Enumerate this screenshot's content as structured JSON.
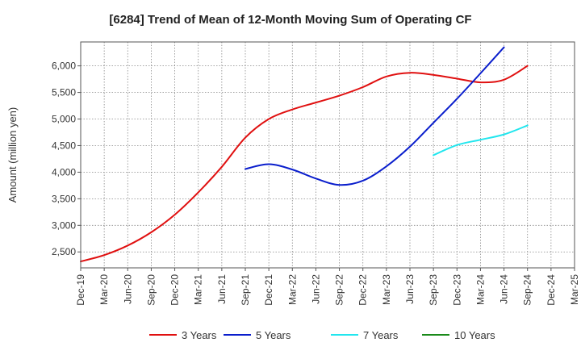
{
  "chart_data": {
    "type": "line",
    "title": "[6284]  Trend of Mean of 12-Month Moving Sum of Operating CF",
    "xlabel": "",
    "ylabel": "Amount (million yen)",
    "ylim": [
      2200,
      6450
    ],
    "yticks": [
      2500,
      3000,
      3500,
      4000,
      4500,
      5000,
      5500,
      6000
    ],
    "ytick_labels": [
      "2,500",
      "3,000",
      "3,500",
      "4,000",
      "4,500",
      "5,000",
      "5,500",
      "6,000"
    ],
    "x_categories": [
      "Dec-19",
      "Mar-20",
      "Jun-20",
      "Sep-20",
      "Dec-20",
      "Mar-21",
      "Jun-21",
      "Sep-21",
      "Dec-21",
      "Mar-22",
      "Jun-22",
      "Sep-22",
      "Dec-22",
      "Mar-23",
      "Jun-23",
      "Sep-23",
      "Dec-23",
      "Mar-24",
      "Jun-24",
      "Sep-24",
      "Dec-24",
      "Mar-25"
    ],
    "grid": true,
    "legend_position": "bottom",
    "series": [
      {
        "name": "3 Years",
        "color": "#e01010",
        "start_index": 0,
        "values": [
          2320,
          2440,
          2620,
          2870,
          3200,
          3620,
          4100,
          4650,
          5000,
          5180,
          5310,
          5440,
          5600,
          5800,
          5870,
          5830,
          5760,
          5690,
          5740,
          6000
        ]
      },
      {
        "name": "5 Years",
        "color": "#0a1ecc",
        "start_index": 7,
        "values": [
          4060,
          4150,
          4050,
          3880,
          3760,
          3840,
          4110,
          4480,
          4930,
          5380,
          5860,
          6350
        ]
      },
      {
        "name": "7 Years",
        "color": "#22e6ee",
        "start_index": 15,
        "values": [
          4320,
          4510,
          4610,
          4710,
          4880
        ]
      },
      {
        "name": "10 Years",
        "color": "#1a8a1a",
        "start_index": 0,
        "values": []
      }
    ]
  }
}
